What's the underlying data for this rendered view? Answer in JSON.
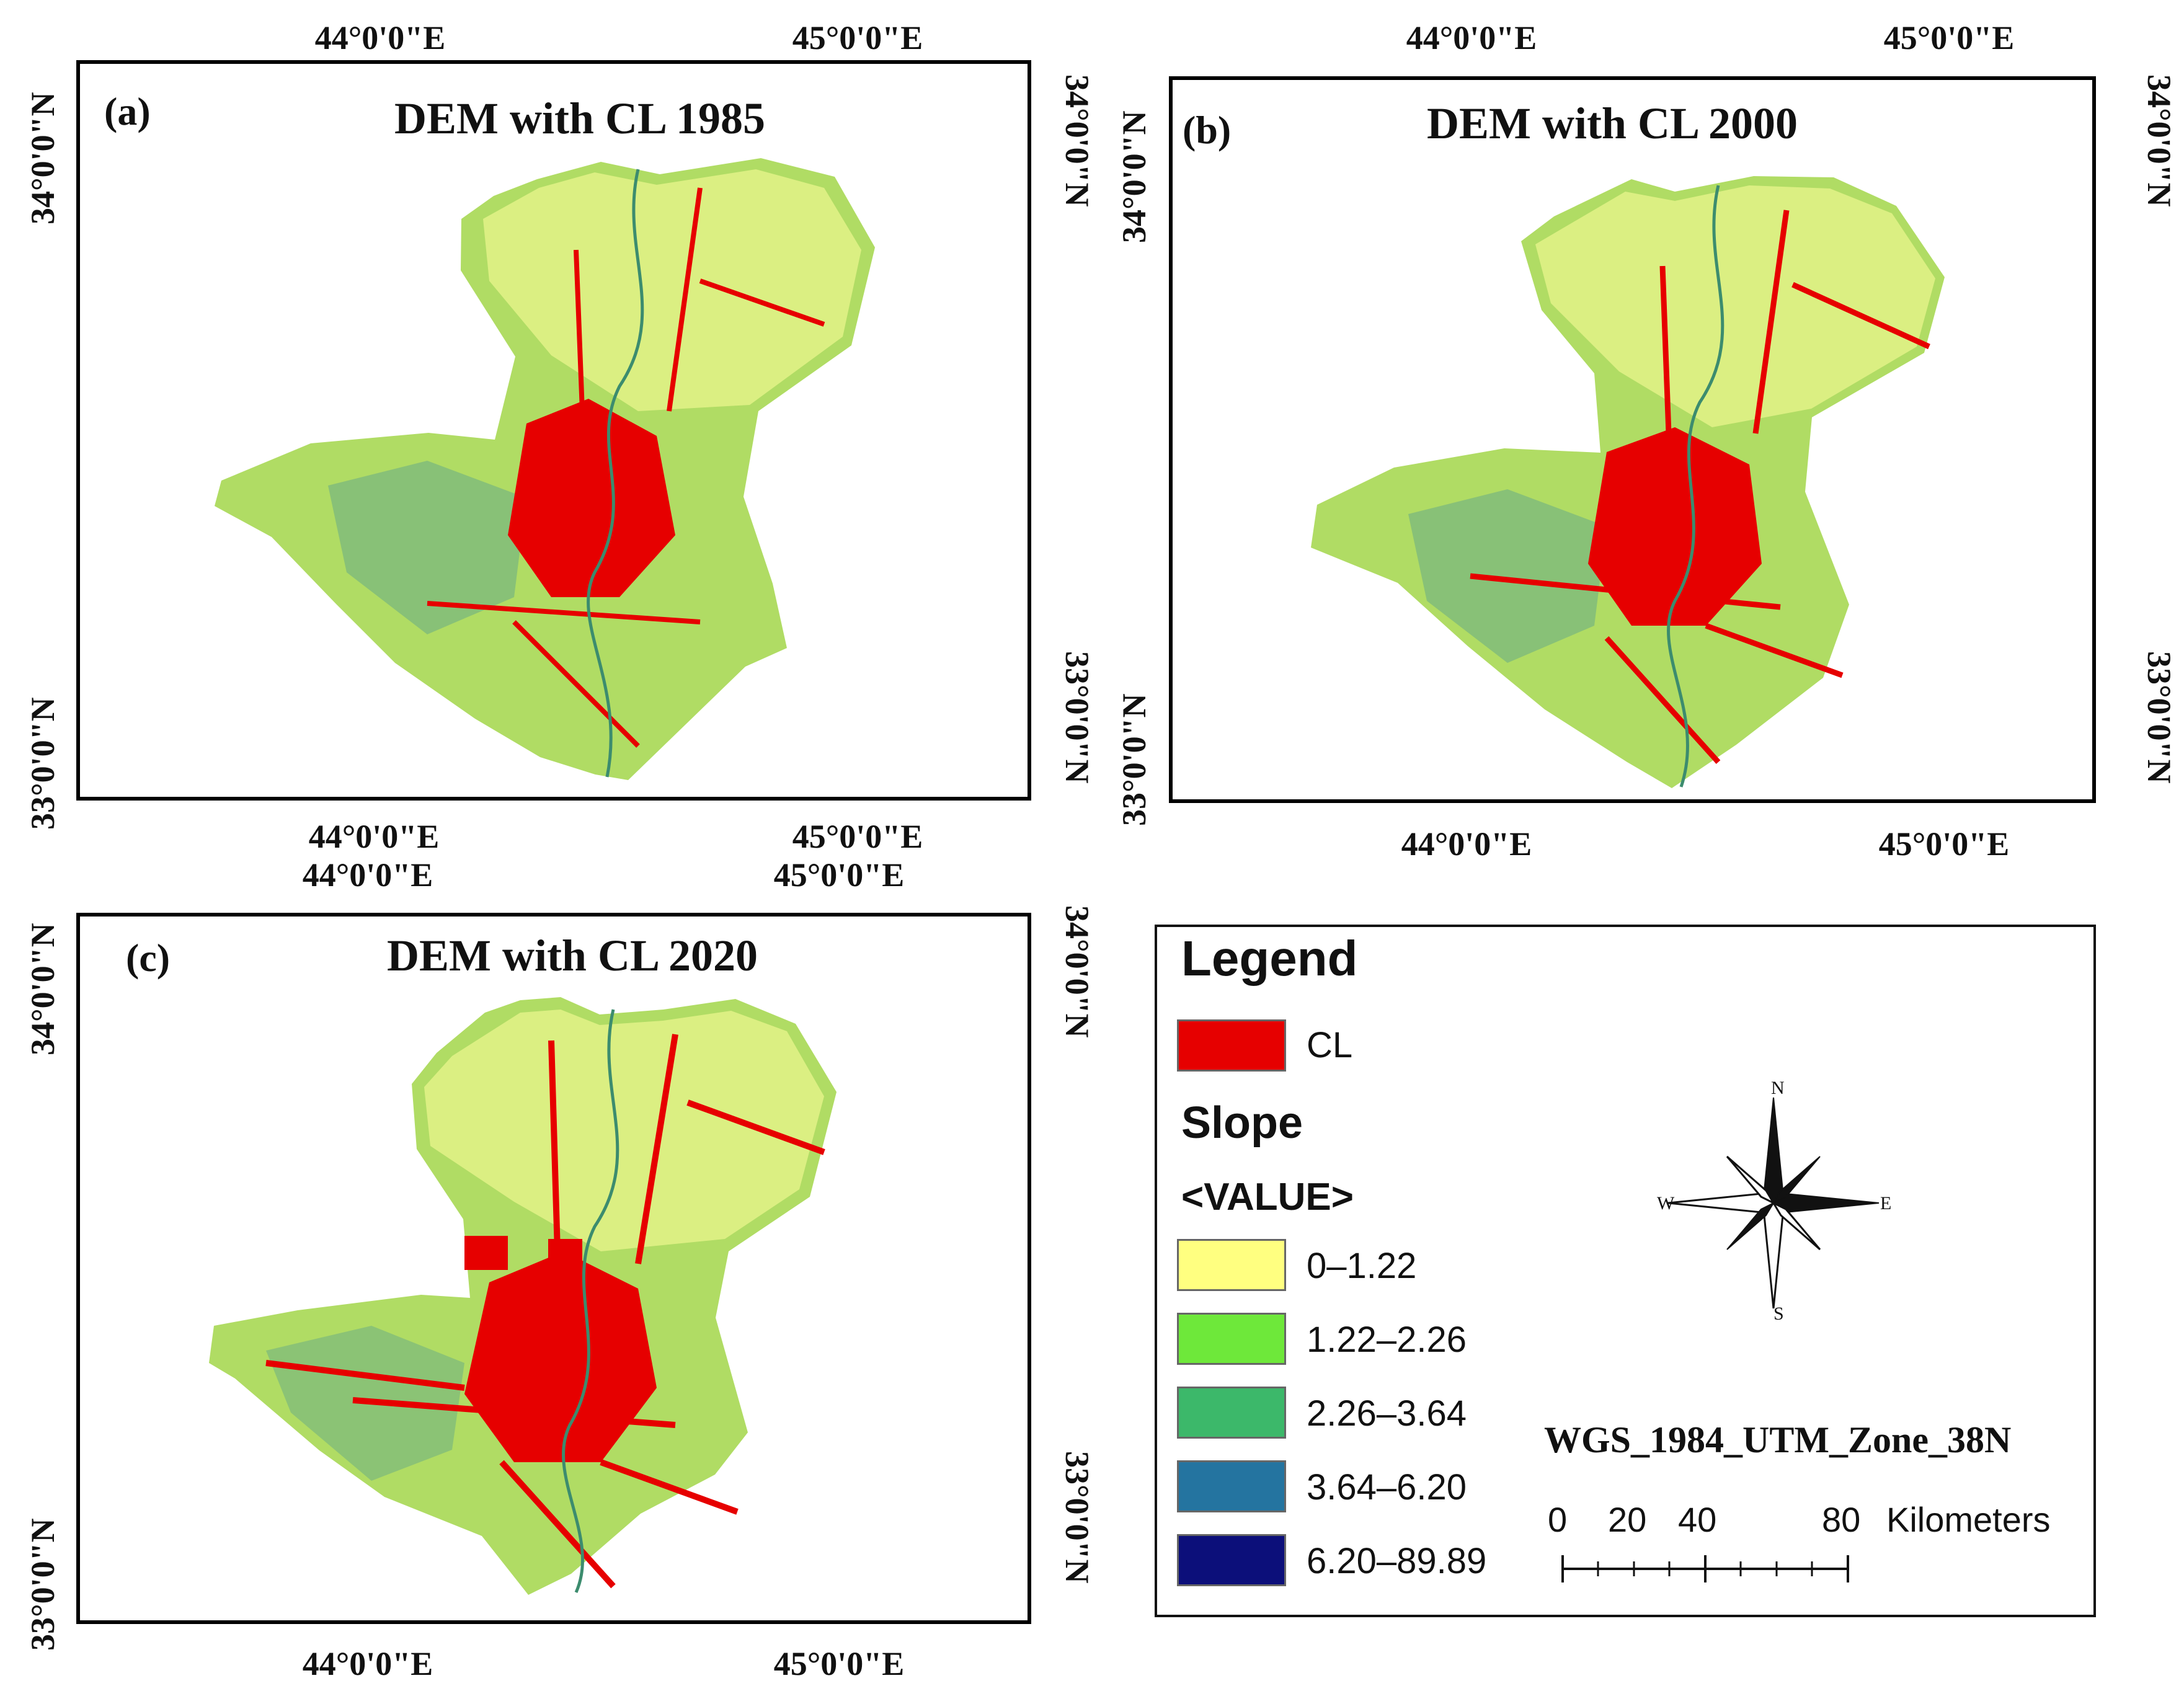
{
  "figure": {
    "panels": [
      {
        "label": "(a)",
        "title": "DEM with CL 1985",
        "lon_top": [
          "44°0'0\"E",
          "45°0'0\"E"
        ],
        "lon_bottom": [
          "44°0'0\"E",
          "45°0'0\"E"
        ],
        "lat_left": [
          "34°0'0\"N",
          "33°0'0\"N"
        ],
        "lat_right": [
          "34°0'0\"N",
          "33°0'0\"N"
        ]
      },
      {
        "label": "(b)",
        "title": "DEM with CL 2000",
        "lon_top": [
          "44°0'0\"E",
          "45°0'0\"E"
        ],
        "lon_bottom": [
          "44°0'0\"E",
          "45°0'0\"E"
        ],
        "lat_left": [
          "34°0'0\"N",
          "33°0'0\"N"
        ],
        "lat_right": [
          "34°0'0\"N",
          "33°0'0\"N"
        ]
      },
      {
        "label": "(c)",
        "title": "DEM with CL 2020",
        "lon_top": [
          "44°0'0\"E",
          "45°0'0\"E"
        ],
        "lon_bottom": [
          "44°0'0\"E",
          "45°0'0\"E"
        ],
        "lat_left": [
          "34°0'0\"N",
          "33°0'0\"N"
        ],
        "lat_right": [
          "34°0'0\"N",
          "33°0'0\"N"
        ]
      }
    ]
  },
  "legend": {
    "title": "Legend",
    "cl_label": "CL",
    "cl_color": "#e60000",
    "slope_title": "Slope",
    "value_title": "<VALUE>",
    "classes": [
      {
        "label": "0–1.22",
        "color": "#ffff80"
      },
      {
        "label": "1.22–2.26",
        "color": "#6ee83a"
      },
      {
        "label": "2.26–3.64",
        "color": "#3cb86a"
      },
      {
        "label": "3.64–6.20",
        "color": "#2474a0"
      },
      {
        "label": "6.20–89.89",
        "color": "#0c0f7a"
      }
    ],
    "north_arrow": {
      "n": "N",
      "s": "S",
      "e": "E",
      "w": "W"
    },
    "projection": "WGS_1984_UTM_Zone_38N",
    "scale_bar": {
      "ticks": [
        "0",
        "20",
        "40",
        "80"
      ],
      "unit": "Kilometers"
    }
  }
}
